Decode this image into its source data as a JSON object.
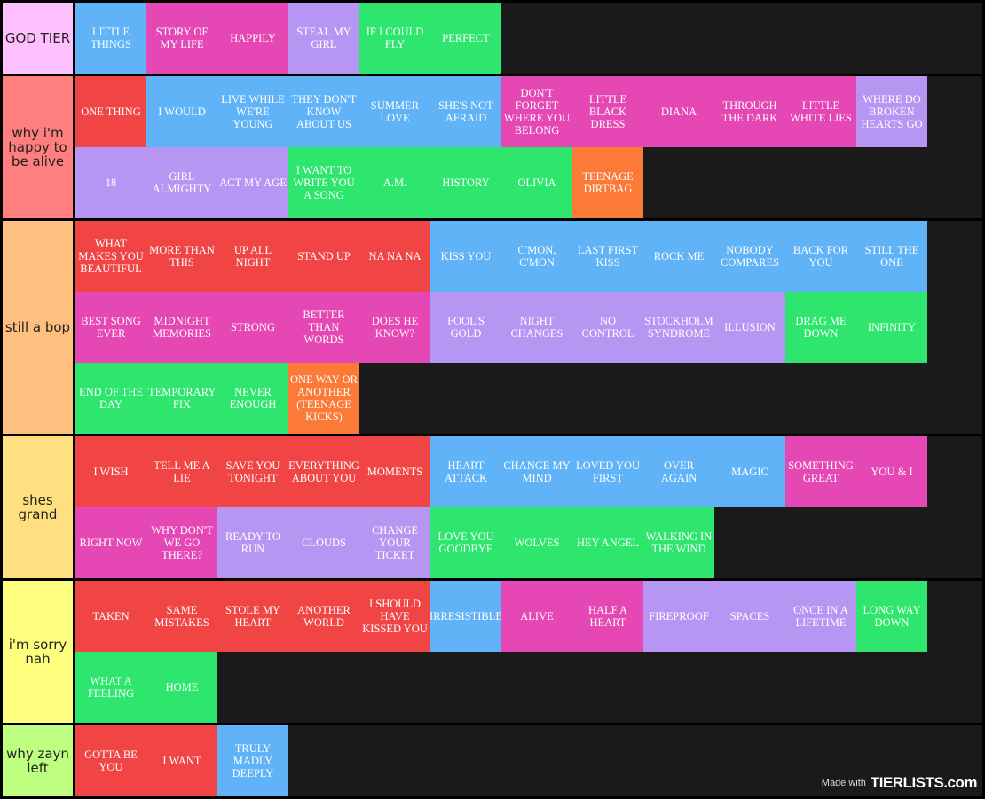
{
  "colors": {
    "red": "#f14545",
    "blue": "#5fb3f6",
    "pink": "#e548b4",
    "purple": "#b796f3",
    "green": "#2ee66d",
    "orange": "#fb7a38"
  },
  "tiers": [
    {
      "label": "GOD TIER",
      "color": "#ffc0ff",
      "items": [
        {
          "text": "LITTLE THINGS",
          "color": "blue"
        },
        {
          "text": "STORY OF MY LIFE",
          "color": "pink"
        },
        {
          "text": "HAPPILY",
          "color": "pink"
        },
        {
          "text": "STEAL MY GIRL",
          "color": "purple"
        },
        {
          "text": "IF I COULD FLY",
          "color": "green"
        },
        {
          "text": "PERFECT",
          "color": "green"
        }
      ]
    },
    {
      "label": "why i'm happy to be alive",
      "color": "#ff7f7f",
      "items": [
        {
          "text": "ONE THING",
          "color": "red"
        },
        {
          "text": "I WOULD",
          "color": "blue"
        },
        {
          "text": "LIVE WHILE WE'RE YOUNG",
          "color": "blue"
        },
        {
          "text": "THEY DON'T KNOW ABOUT US",
          "color": "blue"
        },
        {
          "text": "SUMMER LOVE",
          "color": "blue"
        },
        {
          "text": "SHE'S NOT AFRAID",
          "color": "blue"
        },
        {
          "text": "DON'T FORGET WHERE YOU BELONG",
          "color": "pink"
        },
        {
          "text": "LITTLE BLACK DRESS",
          "color": "pink"
        },
        {
          "text": "DIANA",
          "color": "pink"
        },
        {
          "text": "THROUGH THE DARK",
          "color": "pink"
        },
        {
          "text": "LITTLE WHITE LIES",
          "color": "pink"
        },
        {
          "text": "WHERE DO BROKEN HEARTS GO",
          "color": "purple"
        },
        {
          "text": "18",
          "color": "purple"
        },
        {
          "text": "GIRL ALMIGHTY",
          "color": "purple"
        },
        {
          "text": "ACT MY AGE",
          "color": "purple"
        },
        {
          "text": "I WANT TO WRITE YOU A SONG",
          "color": "green"
        },
        {
          "text": "A.M.",
          "color": "green"
        },
        {
          "text": "HISTORY",
          "color": "green"
        },
        {
          "text": "OLIVIA",
          "color": "green"
        },
        {
          "text": "TEENAGE DIRTBAG",
          "color": "orange"
        }
      ]
    },
    {
      "label": "still a bop",
      "color": "#ffbf7f",
      "items": [
        {
          "text": "WHAT MAKES YOU BEAUTIFUL",
          "color": "red"
        },
        {
          "text": "MORE THAN THIS",
          "color": "red"
        },
        {
          "text": "UP ALL NIGHT",
          "color": "red"
        },
        {
          "text": "STAND UP",
          "color": "red"
        },
        {
          "text": "NA NA NA",
          "color": "red"
        },
        {
          "text": "KISS YOU",
          "color": "blue"
        },
        {
          "text": "C'MON, C'MON",
          "color": "blue"
        },
        {
          "text": "LAST FIRST KISS",
          "color": "blue"
        },
        {
          "text": "ROCK ME",
          "color": "blue"
        },
        {
          "text": "NOBODY COMPARES",
          "color": "blue"
        },
        {
          "text": "BACK FOR YOU",
          "color": "blue"
        },
        {
          "text": "STILL THE ONE",
          "color": "blue"
        },
        {
          "text": "BEST SONG EVER",
          "color": "pink"
        },
        {
          "text": "MIDNIGHT MEMORIES",
          "color": "pink"
        },
        {
          "text": "STRONG",
          "color": "pink"
        },
        {
          "text": "BETTER THAN WORDS",
          "color": "pink"
        },
        {
          "text": "DOES HE KNOW?",
          "color": "pink"
        },
        {
          "text": "FOOL'S GOLD",
          "color": "purple"
        },
        {
          "text": "NIGHT CHANGES",
          "color": "purple"
        },
        {
          "text": "NO CONTROL",
          "color": "purple"
        },
        {
          "text": "STOCKHOLM SYNDROME",
          "color": "purple"
        },
        {
          "text": "ILLUSION",
          "color": "purple"
        },
        {
          "text": "DRAG ME DOWN",
          "color": "green"
        },
        {
          "text": "INFINITY",
          "color": "green"
        },
        {
          "text": "END OF THE DAY",
          "color": "green"
        },
        {
          "text": "TEMPORARY FIX",
          "color": "green"
        },
        {
          "text": "NEVER ENOUGH",
          "color": "green"
        },
        {
          "text": "ONE WAY OR ANOTHER (TEENAGE KICKS)",
          "color": "orange"
        }
      ]
    },
    {
      "label": "shes grand",
      "color": "#ffdf7f",
      "items": [
        {
          "text": "I WISH",
          "color": "red"
        },
        {
          "text": "TELL ME A LIE",
          "color": "red"
        },
        {
          "text": "SAVE YOU TONIGHT",
          "color": "red"
        },
        {
          "text": "EVERYTHING ABOUT YOU",
          "color": "red"
        },
        {
          "text": "MOMENTS",
          "color": "red"
        },
        {
          "text": "HEART ATTACK",
          "color": "blue"
        },
        {
          "text": "CHANGE MY MIND",
          "color": "blue"
        },
        {
          "text": "LOVED YOU FIRST",
          "color": "blue"
        },
        {
          "text": "OVER AGAIN",
          "color": "blue"
        },
        {
          "text": "MAGIC",
          "color": "blue"
        },
        {
          "text": "SOMETHING GREAT",
          "color": "pink"
        },
        {
          "text": "YOU & I",
          "color": "pink"
        },
        {
          "text": "RIGHT NOW",
          "color": "pink"
        },
        {
          "text": "WHY DON'T WE GO THERE?",
          "color": "pink"
        },
        {
          "text": "READY TO RUN",
          "color": "purple"
        },
        {
          "text": "CLOUDS",
          "color": "purple"
        },
        {
          "text": "CHANGE YOUR TICKET",
          "color": "purple"
        },
        {
          "text": "LOVE YOU GOODBYE",
          "color": "green"
        },
        {
          "text": "WOLVES",
          "color": "green"
        },
        {
          "text": "HEY ANGEL",
          "color": "green"
        },
        {
          "text": "WALKING IN THE WIND",
          "color": "green"
        }
      ]
    },
    {
      "label": "i'm sorry nah",
      "color": "#ffff7f",
      "items": [
        {
          "text": "TAKEN",
          "color": "red"
        },
        {
          "text": "SAME MISTAKES",
          "color": "red"
        },
        {
          "text": "STOLE MY HEART",
          "color": "red"
        },
        {
          "text": "ANOTHER WORLD",
          "color": "red"
        },
        {
          "text": "I SHOULD HAVE KISSED YOU",
          "color": "red"
        },
        {
          "text": "IRRESISTIBLE",
          "color": "blue"
        },
        {
          "text": "ALIVE",
          "color": "pink"
        },
        {
          "text": "HALF A HEART",
          "color": "pink"
        },
        {
          "text": "FIREPROOF",
          "color": "purple"
        },
        {
          "text": "SPACES",
          "color": "purple"
        },
        {
          "text": "ONCE IN A LIFETIME",
          "color": "purple"
        },
        {
          "text": "LONG WAY DOWN",
          "color": "green"
        },
        {
          "text": "WHAT A FEELING",
          "color": "green"
        },
        {
          "text": "HOME",
          "color": "green"
        }
      ]
    },
    {
      "label": "why zayn left",
      "color": "#bfff7f",
      "items": [
        {
          "text": "GOTTA BE YOU",
          "color": "red"
        },
        {
          "text": "I WANT",
          "color": "red"
        },
        {
          "text": "TRULY MADLY DEEPLY",
          "color": "blue"
        }
      ]
    }
  ],
  "watermark": {
    "prefix": "Made with",
    "brand": "TIERLISTS.com"
  }
}
